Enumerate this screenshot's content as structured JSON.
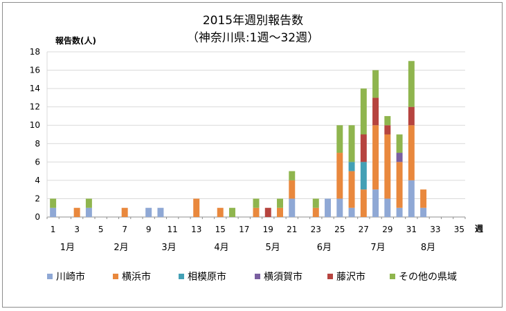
{
  "chart_data": {
    "type": "bar",
    "stacked": true,
    "title": "2015年週別報告数",
    "subtitle": "（神奈川県:1週〜32週）",
    "ylabel": "報告数(人)",
    "xlabel": "週",
    "ylim": [
      0,
      18
    ],
    "yticks": [
      0,
      2,
      4,
      6,
      8,
      10,
      12,
      14,
      16,
      18
    ],
    "xlim": [
      1,
      35
    ],
    "xticks": [
      1,
      3,
      5,
      7,
      9,
      11,
      13,
      15,
      17,
      19,
      21,
      23,
      25,
      27,
      29,
      31,
      33,
      35
    ],
    "grid": true,
    "legend_position": "bottom",
    "months": [
      {
        "label": "1月",
        "week": 2.2
      },
      {
        "label": "2月",
        "week": 6.7
      },
      {
        "label": "3月",
        "week": 10.7
      },
      {
        "label": "4月",
        "week": 15.1
      },
      {
        "label": "5月",
        "week": 19.4
      },
      {
        "label": "6月",
        "week": 23.7
      },
      {
        "label": "7月",
        "week": 28.2
      },
      {
        "label": "8月",
        "week": 32.4
      }
    ],
    "weeks": [
      1,
      2,
      3,
      4,
      5,
      6,
      7,
      8,
      9,
      10,
      11,
      12,
      13,
      14,
      15,
      16,
      17,
      18,
      19,
      20,
      21,
      22,
      23,
      24,
      25,
      26,
      27,
      28,
      29,
      30,
      31,
      32
    ],
    "series": [
      {
        "name": "川崎市",
        "color": "#8fa8d5",
        "values": [
          1,
          0,
          0,
          1,
          0,
          0,
          0,
          0,
          1,
          1,
          0,
          0,
          0,
          0,
          0,
          0,
          0,
          0,
          0,
          0,
          2,
          0,
          0,
          2,
          2,
          1,
          0,
          3,
          2,
          1,
          4,
          1
        ]
      },
      {
        "name": "横浜市",
        "color": "#e9883d",
        "values": [
          0,
          0,
          1,
          0,
          0,
          0,
          1,
          0,
          0,
          0,
          0,
          0,
          2,
          0,
          1,
          0,
          0,
          1,
          0,
          1,
          2,
          0,
          1,
          0,
          5,
          4,
          3,
          7,
          7,
          5,
          6,
          2
        ]
      },
      {
        "name": "相模原市",
        "color": "#43a0b5",
        "values": [
          0,
          0,
          0,
          0,
          0,
          0,
          0,
          0,
          0,
          0,
          0,
          0,
          0,
          0,
          0,
          0,
          0,
          0,
          0,
          0,
          0,
          0,
          0,
          0,
          0,
          1,
          3,
          0,
          0,
          0,
          0,
          0
        ]
      },
      {
        "name": "横須賀市",
        "color": "#7a5fa0",
        "values": [
          0,
          0,
          0,
          0,
          0,
          0,
          0,
          0,
          0,
          0,
          0,
          0,
          0,
          0,
          0,
          0,
          0,
          0,
          0,
          0,
          0,
          0,
          0,
          0,
          0,
          0,
          0,
          0,
          0,
          1,
          0,
          0
        ]
      },
      {
        "name": "藤沢市",
        "color": "#b6443f",
        "values": [
          0,
          0,
          0,
          0,
          0,
          0,
          0,
          0,
          0,
          0,
          0,
          0,
          0,
          0,
          0,
          0,
          0,
          0,
          1,
          0,
          0,
          0,
          0,
          0,
          0,
          0,
          3,
          3,
          1,
          0,
          2,
          0
        ]
      },
      {
        "name": "その他の県域",
        "color": "#8fb54e",
        "values": [
          1,
          0,
          0,
          1,
          0,
          0,
          0,
          0,
          0,
          0,
          0,
          0,
          0,
          0,
          0,
          1,
          0,
          1,
          0,
          1,
          1,
          0,
          1,
          0,
          3,
          4,
          5,
          3,
          1,
          2,
          5,
          0
        ]
      }
    ]
  }
}
